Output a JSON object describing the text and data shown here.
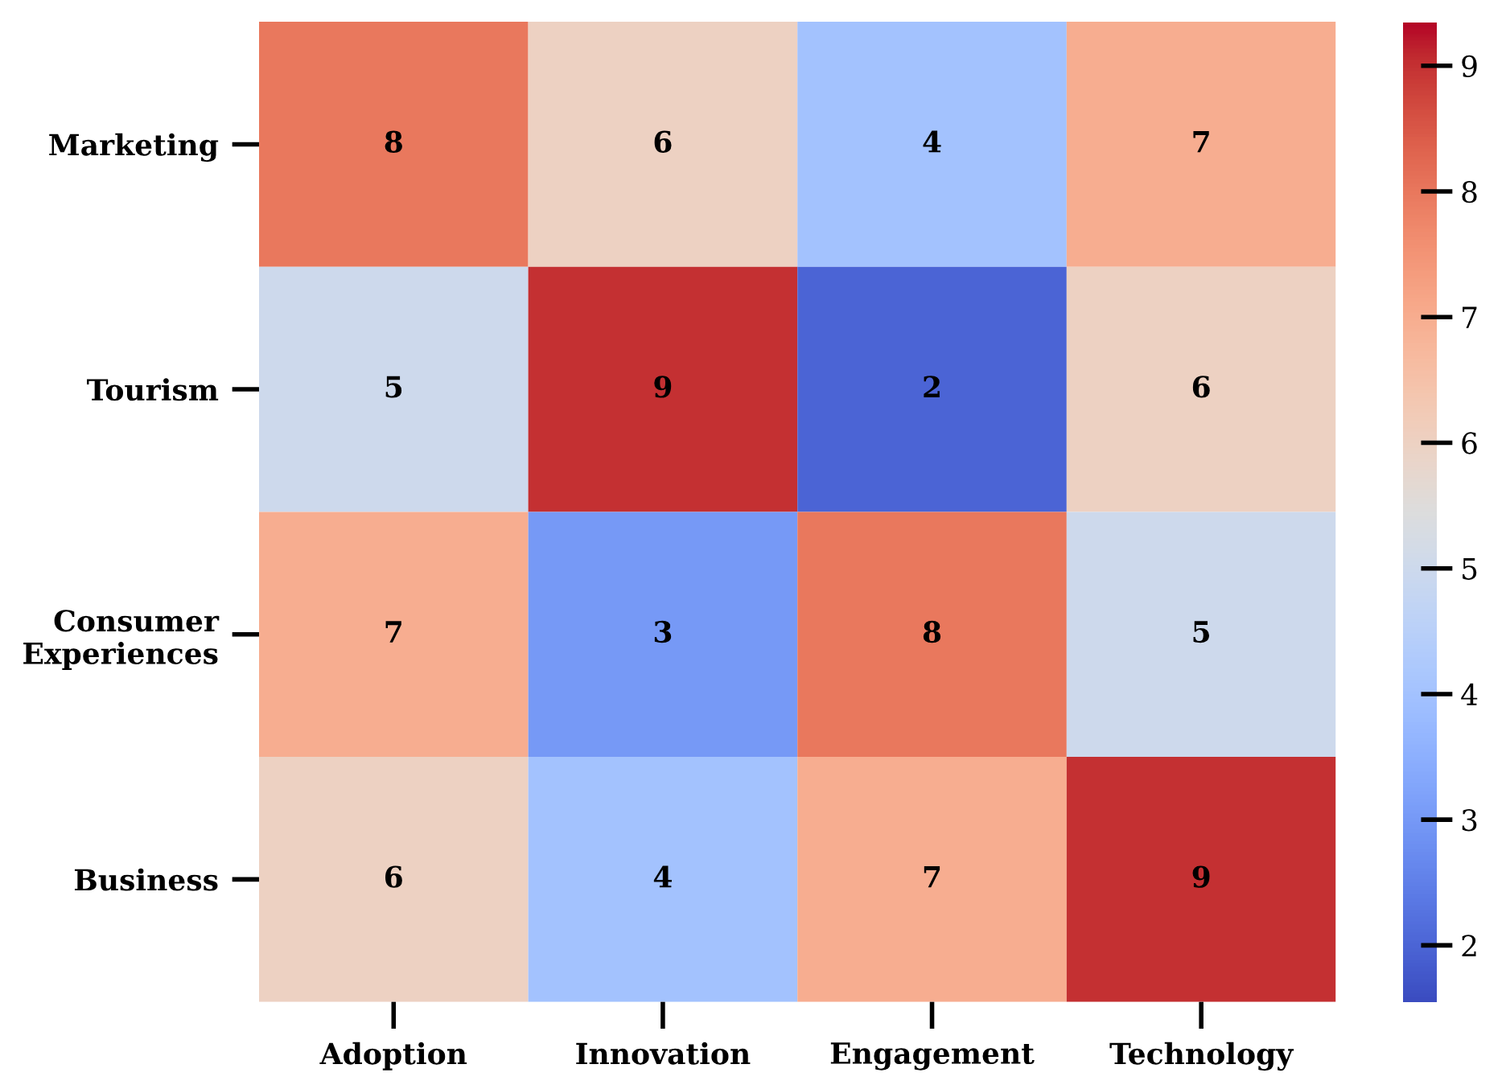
{
  "chart_data": {
    "type": "heatmap",
    "categories": [
      "Adoption",
      "Innovation",
      "Engagement",
      "Technology"
    ],
    "y_categories": [
      "Marketing",
      "Tourism",
      "Consumer\nExperiences",
      "Business"
    ],
    "cells": [
      [
        8,
        6,
        4,
        7
      ],
      [
        5,
        9,
        2,
        6
      ],
      [
        7,
        3,
        8,
        5
      ],
      [
        6,
        4,
        7,
        9
      ]
    ],
    "data_labels": true,
    "clim": [
      1.55,
      9.35
    ],
    "cticks": [
      2,
      3,
      4,
      5,
      6,
      7,
      8,
      9
    ]
  }
}
